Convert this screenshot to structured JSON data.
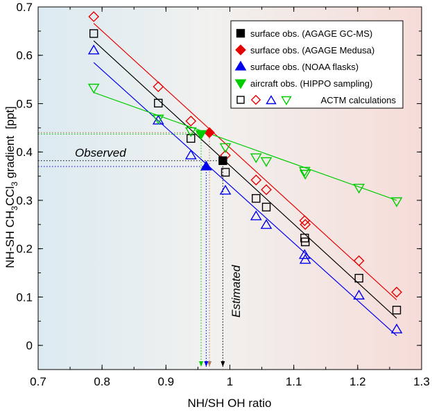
{
  "chart_data": {
    "type": "scatter",
    "xlabel": "NH/SH OH ratio",
    "ylabel_parts": [
      "NH-SH CH",
      "3",
      "CCl",
      "3",
      " gradient  [ppt]"
    ],
    "xlim": [
      0.7,
      1.3
    ],
    "ylim": [
      -0.05,
      0.7
    ],
    "xticks": [
      "0.7",
      "0.8",
      "0.9",
      "1",
      "1.1",
      "1.2",
      "1.3"
    ],
    "xtick_values": [
      0.7,
      0.8,
      0.9,
      1.0,
      1.1,
      1.2,
      1.3
    ],
    "yticks": [
      "0",
      "0.1",
      "0.2",
      "0.3",
      "0.4",
      "0.5",
      "0.6",
      "0.7"
    ],
    "ytick_values": [
      0,
      0.1,
      0.2,
      0.3,
      0.4,
      0.5,
      0.6,
      0.7
    ],
    "grid": false,
    "legend_position": "top-right",
    "legend": [
      {
        "label": "surface obs. (AGAGE GC-MS)",
        "marker": "square-filled",
        "color": "#000000"
      },
      {
        "label": "surface obs. (AGAGE Medusa)",
        "marker": "diamond-filled",
        "color": "#e60000"
      },
      {
        "label": "surface obs. (NOAA flasks)",
        "marker": "triangle-filled",
        "color": "#0000ee"
      },
      {
        "label": "aircraft obs. (HIPPO sampling)",
        "marker": "triangle-down-filled",
        "color": "#00cc00"
      },
      {
        "label": "ACTM calculations",
        "marker": "open-set",
        "color": "#000000"
      }
    ],
    "annotations": {
      "observed": "Observed",
      "estimated": "Estimated"
    },
    "series": [
      {
        "marker": "square",
        "color": "#000000",
        "x": [
          0.787,
          0.888,
          0.939,
          0.993,
          1.041,
          1.057,
          1.117,
          1.118,
          1.202,
          1.261
        ],
        "y": [
          0.645,
          0.501,
          0.428,
          0.358,
          0.304,
          0.286,
          0.222,
          0.214,
          0.139,
          0.073
        ],
        "fit": [
          [
            0.787,
            0.63
          ],
          [
            1.261,
            0.056
          ]
        ],
        "observed": {
          "x": 0.989,
          "y": 0.382
        }
      },
      {
        "marker": "diamond",
        "color": "#e60000",
        "x": [
          0.787,
          0.888,
          0.939,
          0.993,
          1.041,
          1.057,
          1.117,
          1.118,
          1.202,
          1.261
        ],
        "y": [
          0.68,
          0.535,
          0.464,
          0.393,
          0.342,
          0.322,
          0.258,
          0.25,
          0.175,
          0.11
        ],
        "fit": [
          [
            0.787,
            0.666
          ],
          [
            1.261,
            0.094
          ]
        ],
        "observed": {
          "x": 0.968,
          "y": 0.44
        }
      },
      {
        "marker": "triangle",
        "color": "#0000ee",
        "x": [
          0.787,
          0.888,
          0.939,
          0.993,
          1.041,
          1.057,
          1.117,
          1.118,
          1.202,
          1.261
        ],
        "y": [
          0.61,
          0.465,
          0.393,
          0.32,
          0.267,
          0.249,
          0.187,
          0.177,
          0.103,
          0.033
        ],
        "fit": [
          [
            0.787,
            0.585
          ],
          [
            1.261,
            0.02
          ]
        ],
        "observed": {
          "x": 0.963,
          "y": 0.37
        }
      },
      {
        "marker": "triangle-down",
        "color": "#00cc00",
        "x": [
          0.787,
          0.888,
          0.939,
          0.993,
          1.041,
          1.057,
          1.117,
          1.118,
          1.202,
          1.261
        ],
        "y": [
          0.533,
          0.469,
          0.443,
          0.41,
          0.389,
          0.381,
          0.361,
          0.355,
          0.326,
          0.298
        ],
        "fit": [
          [
            0.787,
            0.523
          ],
          [
            1.261,
            0.3
          ]
        ],
        "observed": {
          "x": 0.955,
          "y": 0.437
        }
      }
    ]
  }
}
